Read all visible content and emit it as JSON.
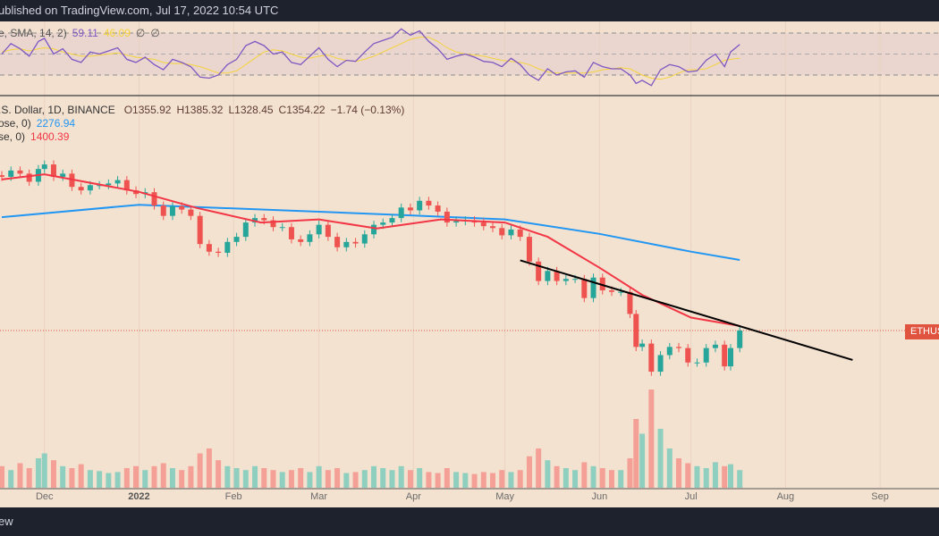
{
  "header": {
    "text": "ublished on TradingView.com, Jul 17, 2022 10:54 UTC"
  },
  "footer": {
    "text": "ew"
  },
  "rsi_legend": {
    "label": "e, SMA, 14, 2)",
    "rsi": "59.11",
    "sma": "46.09",
    "na1": "∅",
    "na2": "∅",
    "rsi_color": "#7e57c2",
    "sma_color": "#f5d33b"
  },
  "main_legend": {
    "symbol": ".S. Dollar, 1D, BINANCE",
    "open": "O1355.92",
    "high": "H1385.32",
    "low": "L1328.45",
    "close": "C1354.22",
    "change": "−1.74 (−0.13%)"
  },
  "ma200_legend": {
    "label": "ose, 0)",
    "value": "2276.94",
    "color": "#2196f3"
  },
  "ma50_legend": {
    "label": "se, 0)",
    "value": "1400.39",
    "color": "#f23645"
  },
  "price_tag": "ETHUSD",
  "colors": {
    "up": "#26a69a",
    "down": "#ef5350",
    "trendline": "#000000",
    "background": "#f4e2d0"
  },
  "chart_data": {
    "type": "candlestick",
    "scale": "log",
    "x_ticks": [
      {
        "date": "2021-12-01",
        "label": "Dec"
      },
      {
        "date": "2022-01-01",
        "label": "2022"
      },
      {
        "date": "2022-02-01",
        "label": "Feb"
      },
      {
        "date": "2022-03-01",
        "label": "Mar"
      },
      {
        "date": "2022-04-01",
        "label": "Apr"
      },
      {
        "date": "2022-05-01",
        "label": "May"
      },
      {
        "date": "2022-06-01",
        "label": "Jun"
      },
      {
        "date": "2022-07-01",
        "label": "Jul"
      },
      {
        "date": "2022-08-01",
        "label": "Aug"
      },
      {
        "date": "2022-09-01",
        "label": "Sep"
      }
    ],
    "first_open": 4250,
    "closes": [
      [
        "2021-11-17",
        4200
      ],
      [
        "2021-11-20",
        4400
      ],
      [
        "2021-11-23",
        4300
      ],
      [
        "2021-11-26",
        4050
      ],
      [
        "2021-11-29",
        4450
      ],
      [
        "2021-12-01",
        4600
      ],
      [
        "2021-12-04",
        4200
      ],
      [
        "2021-12-07",
        4300
      ],
      [
        "2021-12-10",
        3900
      ],
      [
        "2021-12-13",
        3800
      ],
      [
        "2021-12-16",
        3950
      ],
      [
        "2021-12-19",
        3950
      ],
      [
        "2021-12-22",
        4000
      ],
      [
        "2021-12-25",
        4100
      ],
      [
        "2021-12-28",
        3800
      ],
      [
        "2021-12-31",
        3700
      ],
      [
        "2022-01-03",
        3750
      ],
      [
        "2022-01-06",
        3400
      ],
      [
        "2022-01-09",
        3150
      ],
      [
        "2022-01-12",
        3380
      ],
      [
        "2022-01-15",
        3300
      ],
      [
        "2022-01-18",
        3150
      ],
      [
        "2022-01-21",
        2560
      ],
      [
        "2022-01-24",
        2420
      ],
      [
        "2022-01-27",
        2400
      ],
      [
        "2022-01-30",
        2600
      ],
      [
        "2022-02-02",
        2700
      ],
      [
        "2022-02-05",
        3000
      ],
      [
        "2022-02-08",
        3100
      ],
      [
        "2022-02-11",
        3050
      ],
      [
        "2022-02-14",
        2900
      ],
      [
        "2022-02-17",
        2900
      ],
      [
        "2022-02-20",
        2650
      ],
      [
        "2022-02-23",
        2600
      ],
      [
        "2022-02-26",
        2750
      ],
      [
        "2022-03-01",
        2950
      ],
      [
        "2022-03-04",
        2700
      ],
      [
        "2022-03-07",
        2500
      ],
      [
        "2022-03-10",
        2600
      ],
      [
        "2022-03-13",
        2570
      ],
      [
        "2022-03-16",
        2750
      ],
      [
        "2022-03-19",
        2950
      ],
      [
        "2022-03-22",
        3000
      ],
      [
        "2022-03-25",
        3100
      ],
      [
        "2022-03-28",
        3350
      ],
      [
        "2022-03-31",
        3280
      ],
      [
        "2022-04-03",
        3520
      ],
      [
        "2022-04-06",
        3400
      ],
      [
        "2022-04-09",
        3250
      ],
      [
        "2022-04-12",
        3000
      ],
      [
        "2022-04-15",
        3030
      ],
      [
        "2022-04-18",
        3050
      ],
      [
        "2022-04-21",
        3000
      ],
      [
        "2022-04-24",
        2920
      ],
      [
        "2022-04-27",
        2880
      ],
      [
        "2022-04-30",
        2730
      ],
      [
        "2022-05-03",
        2850
      ],
      [
        "2022-05-06",
        2700
      ],
      [
        "2022-05-09",
        2250
      ],
      [
        "2022-05-12",
        1950
      ],
      [
        "2022-05-15",
        2100
      ],
      [
        "2022-05-18",
        1950
      ],
      [
        "2022-05-21",
        1980
      ],
      [
        "2022-05-24",
        1980
      ],
      [
        "2022-05-27",
        1720
      ],
      [
        "2022-05-30",
        2000
      ],
      [
        "2022-06-02",
        1820
      ],
      [
        "2022-06-05",
        1800
      ],
      [
        "2022-06-08",
        1800
      ],
      [
        "2022-06-11",
        1530
      ],
      [
        "2022-06-13",
        1200
      ],
      [
        "2022-06-15",
        1230
      ],
      [
        "2022-06-18",
        1000
      ],
      [
        "2022-06-21",
        1130
      ],
      [
        "2022-06-24",
        1200
      ],
      [
        "2022-06-27",
        1190
      ],
      [
        "2022-06-30",
        1070
      ],
      [
        "2022-07-03",
        1070
      ],
      [
        "2022-07-06",
        1190
      ],
      [
        "2022-07-09",
        1220
      ],
      [
        "2022-07-12",
        1040
      ],
      [
        "2022-07-14",
        1190
      ],
      [
        "2022-07-17",
        1354
      ]
    ],
    "ma200": [
      [
        "2021-11-17",
        3120
      ],
      [
        "2022-01-01",
        3420
      ],
      [
        "2022-04-01",
        3160
      ],
      [
        "2022-05-01",
        3070
      ],
      [
        "2022-06-01",
        2760
      ],
      [
        "2022-07-01",
        2420
      ],
      [
        "2022-07-17",
        2276.94
      ]
    ],
    "ma50": [
      [
        "2021-11-17",
        4120
      ],
      [
        "2021-12-01",
        4280
      ],
      [
        "2022-01-01",
        3760
      ],
      [
        "2022-01-20",
        3340
      ],
      [
        "2022-02-10",
        3000
      ],
      [
        "2022-03-01",
        3070
      ],
      [
        "2022-03-20",
        2870
      ],
      [
        "2022-04-10",
        3070
      ],
      [
        "2022-05-01",
        3000
      ],
      [
        "2022-05-15",
        2700
      ],
      [
        "2022-06-01",
        2150
      ],
      [
        "2022-06-15",
        1760
      ],
      [
        "2022-07-01",
        1490
      ],
      [
        "2022-07-17",
        1400.39
      ]
    ],
    "trendline": [
      [
        "2022-05-06",
        2270
      ],
      [
        "2022-08-23",
        1090
      ]
    ],
    "last_price": 1354.22,
    "rsi": {
      "levels": [
        70,
        50,
        30
      ],
      "rsi": [
        50,
        60,
        55,
        48,
        62,
        65,
        50,
        55,
        45,
        42,
        52,
        50,
        53,
        56,
        45,
        42,
        47,
        40,
        35,
        45,
        42,
        38,
        28,
        27,
        30,
        40,
        45,
        58,
        62,
        58,
        50,
        52,
        42,
        40,
        48,
        56,
        45,
        38,
        44,
        43,
        52,
        60,
        63,
        66,
        74,
        68,
        72,
        62,
        55,
        45,
        48,
        50,
        47,
        43,
        42,
        38,
        46,
        40,
        30,
        25,
        36,
        30,
        33,
        34,
        28,
        42,
        38,
        36,
        36,
        30,
        22,
        25,
        20,
        35,
        40,
        38,
        33,
        34,
        44,
        50,
        38,
        52,
        59.11
      ],
      "sma": [
        52,
        54,
        55,
        53,
        55,
        56,
        55,
        52,
        50,
        48,
        48,
        49,
        50,
        51,
        49,
        47,
        46,
        45,
        42,
        41,
        41,
        40,
        38,
        35,
        32,
        32,
        34,
        40,
        46,
        52,
        54,
        53,
        50,
        47,
        46,
        48,
        49,
        46,
        44,
        43,
        45,
        48,
        52,
        56,
        60,
        64,
        66,
        66,
        62,
        56,
        52,
        50,
        49,
        48,
        46,
        44,
        43,
        42,
        40,
        36,
        33,
        32,
        32,
        32,
        32,
        33,
        35,
        36,
        37,
        36,
        33,
        30,
        27,
        26,
        28,
        32,
        35,
        35,
        36,
        40,
        44,
        45,
        46.09
      ]
    },
    "volume": [
      22,
      18,
      25,
      20,
      30,
      35,
      28,
      22,
      20,
      24,
      18,
      17,
      15,
      16,
      20,
      22,
      18,
      22,
      25,
      20,
      18,
      22,
      35,
      40,
      28,
      22,
      20,
      18,
      22,
      20,
      18,
      16,
      18,
      20,
      16,
      22,
      18,
      20,
      15,
      16,
      18,
      22,
      20,
      18,
      22,
      18,
      20,
      16,
      15,
      20,
      16,
      15,
      14,
      16,
      15,
      18,
      16,
      18,
      32,
      40,
      28,
      22,
      20,
      18,
      26,
      22,
      20,
      18,
      18,
      30,
      70,
      55,
      100,
      60,
      40,
      30,
      25,
      22,
      20,
      26,
      22,
      24,
      18
    ]
  }
}
